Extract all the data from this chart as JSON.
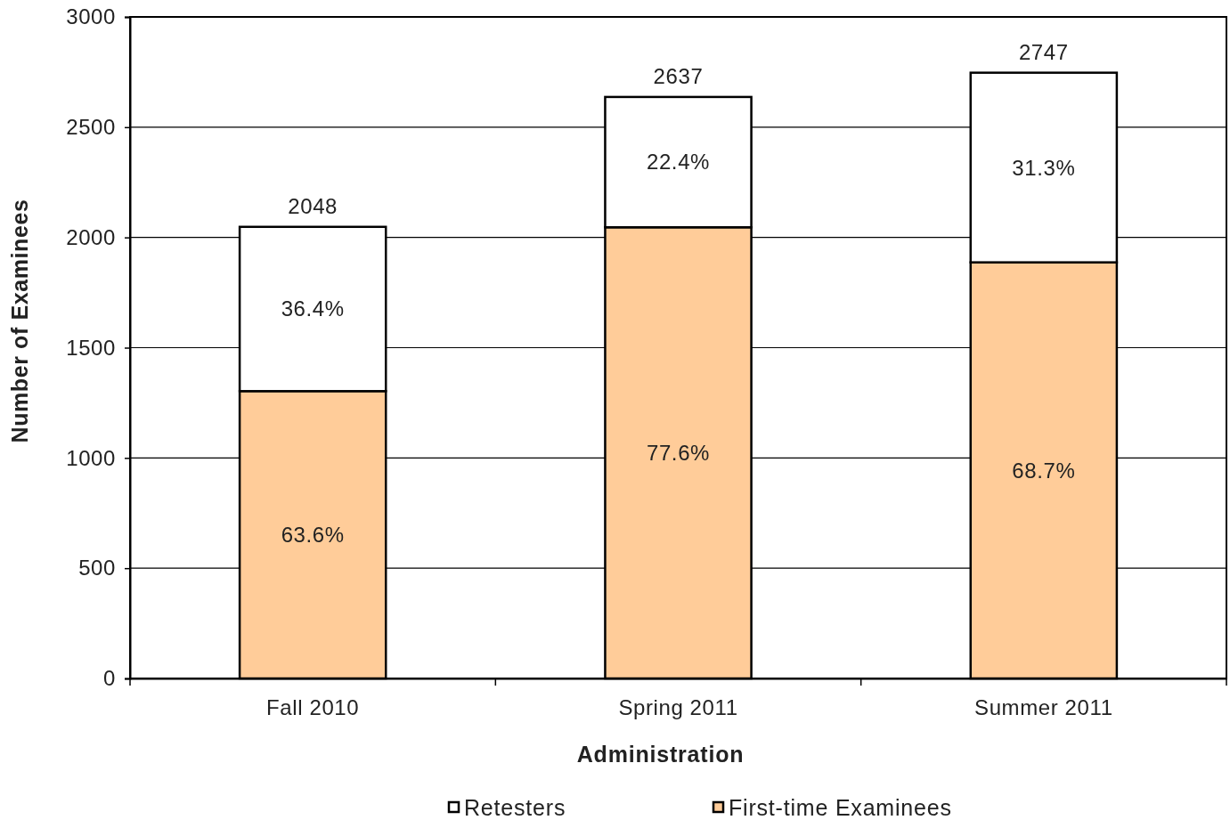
{
  "chart_data": {
    "type": "bar",
    "stacked": true,
    "xlabel": "Administration",
    "ylabel": "Number of Examinees",
    "categories": [
      "Fall 2010",
      "Spring 2011",
      "Summer 2011"
    ],
    "series": [
      {
        "name": "First-time  Examinees",
        "color": "#ffcc99",
        "values": [
          1303,
          2046,
          1887
        ]
      },
      {
        "name": "Retesters",
        "color": "#ffffff",
        "values": [
          745,
          591,
          860
        ]
      }
    ],
    "totals": [
      "2048",
      "2637",
      "2747"
    ],
    "annotations": [
      "63.6%",
      "36.4%",
      "77.6%",
      "22.4%",
      "68.7%",
      "31.3%"
    ],
    "ylim": [
      0,
      3000
    ],
    "yticks": [
      0,
      500,
      1000,
      1500,
      2000,
      2500,
      3000
    ],
    "grid": "y",
    "legend": "bottom"
  }
}
